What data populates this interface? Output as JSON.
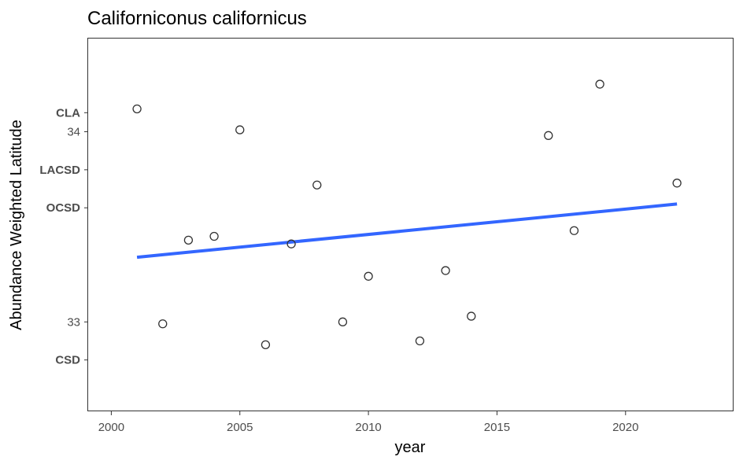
{
  "chart_data": {
    "type": "scatter",
    "title": "Californiconus californicus",
    "xlabel": "year",
    "ylabel": "Abundance Weighted Latitude",
    "xlim": [
      1999.1,
      2024.2
    ],
    "ylim": [
      32.53,
      34.49
    ],
    "x_ticks": [
      2000,
      2005,
      2010,
      2015,
      2020
    ],
    "y_ticks": [
      {
        "value": 34.1,
        "label": "CLA",
        "bold": true
      },
      {
        "value": 34.0,
        "label": "34",
        "bold": false
      },
      {
        "value": 33.8,
        "label": "LACSD",
        "bold": true
      },
      {
        "value": 33.6,
        "label": "OCSD",
        "bold": true
      },
      {
        "value": 33.0,
        "label": "33",
        "bold": false
      },
      {
        "value": 32.8,
        "label": "CSD",
        "bold": true
      }
    ],
    "points": [
      {
        "x": 2001,
        "y": 34.12
      },
      {
        "x": 2002,
        "y": 32.99
      },
      {
        "x": 2003,
        "y": 33.43
      },
      {
        "x": 2004,
        "y": 33.45
      },
      {
        "x": 2005,
        "y": 34.01
      },
      {
        "x": 2006,
        "y": 32.88
      },
      {
        "x": 2007,
        "y": 33.41
      },
      {
        "x": 2008,
        "y": 33.72
      },
      {
        "x": 2009,
        "y": 33.0
      },
      {
        "x": 2010,
        "y": 33.24
      },
      {
        "x": 2012,
        "y": 32.9
      },
      {
        "x": 2013,
        "y": 33.27
      },
      {
        "x": 2014,
        "y": 33.03
      },
      {
        "x": 2017,
        "y": 33.98
      },
      {
        "x": 2018,
        "y": 33.48
      },
      {
        "x": 2019,
        "y": 34.25
      },
      {
        "x": 2022,
        "y": 33.73
      }
    ],
    "trend_line": {
      "x": [
        2001,
        2022
      ],
      "y": [
        33.34,
        33.62
      ]
    },
    "grid": false,
    "point_color": "#333333",
    "trend_color": "#3366FF"
  }
}
